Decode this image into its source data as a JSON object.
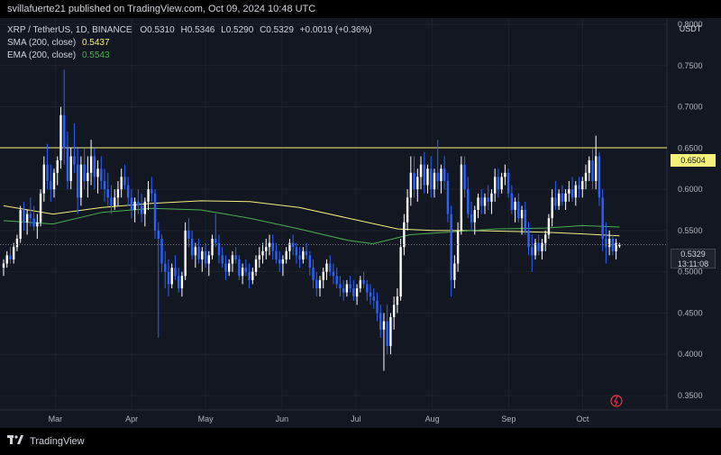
{
  "header": {
    "publisher_text": "svillafuerte21 published on TradingView.com, Oct 09, 2024 10:48 UTC"
  },
  "legend": {
    "symbol_line": "XRP / TetherUS, 1D, BINANCE",
    "open_label": "O",
    "open": "0.5310",
    "high_label": "H",
    "high": "0.5346",
    "low_label": "L",
    "low": "0.5290",
    "close_label": "C",
    "close": "0.5329",
    "change": "+0.0019 (+0.36%)",
    "sma_label": "SMA (200, close)",
    "sma_value": "0.5437",
    "ema_label": "EMA (200, close)",
    "ema_value": "0.5543"
  },
  "toolbar": {
    "currency_button": "USDT"
  },
  "price_tags": {
    "hline_value": "0.6504",
    "last_price": "0.5329",
    "countdown": "13:11:08"
  },
  "footer": {
    "brand": "TradingView"
  },
  "colors": {
    "background": "#131722",
    "candle_up": "#ffffff",
    "candle_down": "#2962ff",
    "sma": "#f5f07a",
    "ema": "#4caf50",
    "hline": "#f5f07a",
    "grid": "#1e222d"
  },
  "chart_data": {
    "type": "candlestick",
    "title": "XRP / TetherUS, 1D, BINANCE",
    "ylim": [
      0.32,
      0.82
    ],
    "y_ticks": [
      "0.8000",
      "0.7500",
      "0.7000",
      "0.6500",
      "0.6000",
      "0.5500",
      "0.5000",
      "0.4500",
      "0.4000",
      "0.3500"
    ],
    "y_tick_values": [
      0.8,
      0.75,
      0.7,
      0.65,
      0.6,
      0.55,
      0.5,
      0.45,
      0.4,
      0.35
    ],
    "x_ticks": [
      "Mar",
      "Apr",
      "May",
      "Jun",
      "Jul",
      "Aug",
      "Sep",
      "Oct"
    ],
    "x_tick_days": [
      21,
      52,
      82,
      113,
      143,
      174,
      205,
      235
    ],
    "start_day": 0,
    "end_day": 270,
    "horizontal_line": 0.6504,
    "ohlc": [
      [
        0.505,
        0.515,
        0.495,
        0.51
      ],
      [
        0.51,
        0.525,
        0.505,
        0.52
      ],
      [
        0.52,
        0.53,
        0.51,
        0.515
      ],
      [
        0.515,
        0.535,
        0.51,
        0.53
      ],
      [
        0.53,
        0.545,
        0.525,
        0.54
      ],
      [
        0.54,
        0.58,
        0.535,
        0.575
      ],
      [
        0.575,
        0.585,
        0.55,
        0.56
      ],
      [
        0.56,
        0.575,
        0.545,
        0.57
      ],
      [
        0.57,
        0.59,
        0.555,
        0.565
      ],
      [
        0.565,
        0.58,
        0.55,
        0.555
      ],
      [
        0.555,
        0.57,
        0.54,
        0.56
      ],
      [
        0.56,
        0.6,
        0.555,
        0.595
      ],
      [
        0.595,
        0.64,
        0.585,
        0.63
      ],
      [
        0.63,
        0.655,
        0.6,
        0.61
      ],
      [
        0.61,
        0.63,
        0.585,
        0.6
      ],
      [
        0.6,
        0.625,
        0.59,
        0.62
      ],
      [
        0.62,
        0.64,
        0.605,
        0.635
      ],
      [
        0.635,
        0.7,
        0.625,
        0.69
      ],
      [
        0.69,
        0.745,
        0.63,
        0.65
      ],
      [
        0.65,
        0.67,
        0.6,
        0.61
      ],
      [
        0.61,
        0.65,
        0.6,
        0.64
      ],
      [
        0.64,
        0.68,
        0.62,
        0.63
      ],
      [
        0.63,
        0.65,
        0.57,
        0.59
      ],
      [
        0.59,
        0.64,
        0.58,
        0.63
      ],
      [
        0.63,
        0.65,
        0.6,
        0.61
      ],
      [
        0.61,
        0.64,
        0.59,
        0.62
      ],
      [
        0.62,
        0.66,
        0.605,
        0.64
      ],
      [
        0.64,
        0.65,
        0.6,
        0.615
      ],
      [
        0.615,
        0.635,
        0.595,
        0.625
      ],
      [
        0.625,
        0.64,
        0.6,
        0.61
      ],
      [
        0.61,
        0.625,
        0.585,
        0.6
      ],
      [
        0.6,
        0.62,
        0.58,
        0.59
      ],
      [
        0.59,
        0.605,
        0.57,
        0.58
      ],
      [
        0.58,
        0.6,
        0.575,
        0.59
      ],
      [
        0.59,
        0.61,
        0.58,
        0.6
      ],
      [
        0.6,
        0.625,
        0.59,
        0.615
      ],
      [
        0.615,
        0.63,
        0.6,
        0.605
      ],
      [
        0.605,
        0.615,
        0.58,
        0.59
      ],
      [
        0.59,
        0.6,
        0.565,
        0.575
      ],
      [
        0.575,
        0.59,
        0.56,
        0.585
      ],
      [
        0.585,
        0.6,
        0.57,
        0.58
      ],
      [
        0.58,
        0.595,
        0.56,
        0.57
      ],
      [
        0.57,
        0.59,
        0.555,
        0.585
      ],
      [
        0.585,
        0.61,
        0.575,
        0.6
      ],
      [
        0.6,
        0.615,
        0.585,
        0.595
      ],
      [
        0.595,
        0.6,
        0.54,
        0.55
      ],
      [
        0.55,
        0.56,
        0.42,
        0.54
      ],
      [
        0.54,
        0.545,
        0.5,
        0.51
      ],
      [
        0.51,
        0.525,
        0.48,
        0.5
      ],
      [
        0.5,
        0.515,
        0.47,
        0.485
      ],
      [
        0.485,
        0.51,
        0.48,
        0.505
      ],
      [
        0.505,
        0.52,
        0.49,
        0.495
      ],
      [
        0.495,
        0.505,
        0.475,
        0.48
      ],
      [
        0.48,
        0.5,
        0.47,
        0.495
      ],
      [
        0.495,
        0.56,
        0.49,
        0.55
      ],
      [
        0.55,
        0.565,
        0.53,
        0.54
      ],
      [
        0.54,
        0.55,
        0.515,
        0.52
      ],
      [
        0.52,
        0.535,
        0.505,
        0.53
      ],
      [
        0.53,
        0.54,
        0.51,
        0.515
      ],
      [
        0.515,
        0.53,
        0.5,
        0.525
      ],
      [
        0.525,
        0.535,
        0.505,
        0.51
      ],
      [
        0.51,
        0.525,
        0.495,
        0.52
      ],
      [
        0.52,
        0.545,
        0.515,
        0.54
      ],
      [
        0.54,
        0.57,
        0.53,
        0.535
      ],
      [
        0.535,
        0.545,
        0.51,
        0.52
      ],
      [
        0.52,
        0.53,
        0.505,
        0.51
      ],
      [
        0.51,
        0.52,
        0.49,
        0.5
      ],
      [
        0.5,
        0.515,
        0.495,
        0.51
      ],
      [
        0.51,
        0.525,
        0.5,
        0.52
      ],
      [
        0.52,
        0.53,
        0.51,
        0.515
      ],
      [
        0.515,
        0.52,
        0.49,
        0.495
      ],
      [
        0.495,
        0.51,
        0.485,
        0.505
      ],
      [
        0.505,
        0.515,
        0.495,
        0.5
      ],
      [
        0.5,
        0.51,
        0.48,
        0.49
      ],
      [
        0.49,
        0.505,
        0.485,
        0.5
      ],
      [
        0.5,
        0.52,
        0.495,
        0.515
      ],
      [
        0.515,
        0.53,
        0.505,
        0.52
      ],
      [
        0.52,
        0.535,
        0.51,
        0.525
      ],
      [
        0.525,
        0.54,
        0.515,
        0.53
      ],
      [
        0.53,
        0.545,
        0.52,
        0.535
      ],
      [
        0.535,
        0.545,
        0.515,
        0.525
      ],
      [
        0.525,
        0.535,
        0.51,
        0.515
      ],
      [
        0.515,
        0.525,
        0.5,
        0.51
      ],
      [
        0.51,
        0.52,
        0.495,
        0.515
      ],
      [
        0.515,
        0.53,
        0.51,
        0.525
      ],
      [
        0.525,
        0.54,
        0.515,
        0.535
      ],
      [
        0.535,
        0.545,
        0.52,
        0.53
      ],
      [
        0.53,
        0.535,
        0.51,
        0.52
      ],
      [
        0.52,
        0.53,
        0.505,
        0.515
      ],
      [
        0.515,
        0.53,
        0.51,
        0.525
      ],
      [
        0.525,
        0.535,
        0.515,
        0.52
      ],
      [
        0.52,
        0.525,
        0.495,
        0.505
      ],
      [
        0.505,
        0.515,
        0.48,
        0.49
      ],
      [
        0.49,
        0.5,
        0.47,
        0.48
      ],
      [
        0.48,
        0.495,
        0.47,
        0.49
      ],
      [
        0.49,
        0.505,
        0.48,
        0.5
      ],
      [
        0.5,
        0.515,
        0.49,
        0.51
      ],
      [
        0.51,
        0.52,
        0.495,
        0.5
      ],
      [
        0.5,
        0.51,
        0.485,
        0.495
      ],
      [
        0.495,
        0.505,
        0.48,
        0.485
      ],
      [
        0.485,
        0.495,
        0.47,
        0.48
      ],
      [
        0.48,
        0.49,
        0.465,
        0.475
      ],
      [
        0.475,
        0.49,
        0.47,
        0.485
      ],
      [
        0.485,
        0.495,
        0.475,
        0.48
      ],
      [
        0.48,
        0.49,
        0.465,
        0.47
      ],
      [
        0.47,
        0.485,
        0.46,
        0.48
      ],
      [
        0.48,
        0.495,
        0.475,
        0.49
      ],
      [
        0.49,
        0.5,
        0.48,
        0.485
      ],
      [
        0.485,
        0.49,
        0.465,
        0.475
      ],
      [
        0.475,
        0.485,
        0.46,
        0.47
      ],
      [
        0.47,
        0.48,
        0.455,
        0.465
      ],
      [
        0.465,
        0.475,
        0.44,
        0.45
      ],
      [
        0.45,
        0.46,
        0.42,
        0.43
      ],
      [
        0.43,
        0.45,
        0.38,
        0.44
      ],
      [
        0.44,
        0.46,
        0.4,
        0.41
      ],
      [
        0.41,
        0.45,
        0.4,
        0.445
      ],
      [
        0.445,
        0.47,
        0.43,
        0.46
      ],
      [
        0.46,
        0.48,
        0.45,
        0.47
      ],
      [
        0.47,
        0.54,
        0.465,
        0.53
      ],
      [
        0.53,
        0.57,
        0.52,
        0.56
      ],
      [
        0.56,
        0.6,
        0.55,
        0.59
      ],
      [
        0.59,
        0.64,
        0.58,
        0.62
      ],
      [
        0.62,
        0.64,
        0.59,
        0.6
      ],
      [
        0.6,
        0.625,
        0.585,
        0.615
      ],
      [
        0.615,
        0.64,
        0.6,
        0.63
      ],
      [
        0.63,
        0.645,
        0.595,
        0.605
      ],
      [
        0.605,
        0.63,
        0.595,
        0.625
      ],
      [
        0.625,
        0.64,
        0.59,
        0.6
      ],
      [
        0.6,
        0.625,
        0.59,
        0.62
      ],
      [
        0.62,
        0.66,
        0.6,
        0.61
      ],
      [
        0.61,
        0.63,
        0.595,
        0.625
      ],
      [
        0.625,
        0.64,
        0.6,
        0.61
      ],
      [
        0.61,
        0.62,
        0.56,
        0.57
      ],
      [
        0.57,
        0.58,
        0.47,
        0.49
      ],
      [
        0.49,
        0.52,
        0.48,
        0.51
      ],
      [
        0.51,
        0.56,
        0.5,
        0.55
      ],
      [
        0.55,
        0.64,
        0.545,
        0.63
      ],
      [
        0.63,
        0.64,
        0.59,
        0.6
      ],
      [
        0.6,
        0.615,
        0.565,
        0.57
      ],
      [
        0.57,
        0.585,
        0.55,
        0.56
      ],
      [
        0.56,
        0.58,
        0.545,
        0.575
      ],
      [
        0.575,
        0.595,
        0.565,
        0.59
      ],
      [
        0.59,
        0.6,
        0.57,
        0.58
      ],
      [
        0.58,
        0.595,
        0.57,
        0.59
      ],
      [
        0.59,
        0.605,
        0.575,
        0.585
      ],
      [
        0.585,
        0.6,
        0.57,
        0.595
      ],
      [
        0.595,
        0.625,
        0.585,
        0.615
      ],
      [
        0.615,
        0.625,
        0.59,
        0.6
      ],
      [
        0.6,
        0.62,
        0.595,
        0.615
      ],
      [
        0.615,
        0.63,
        0.605,
        0.62
      ],
      [
        0.62,
        0.625,
        0.59,
        0.595
      ],
      [
        0.595,
        0.605,
        0.57,
        0.575
      ],
      [
        0.575,
        0.59,
        0.56,
        0.585
      ],
      [
        0.585,
        0.595,
        0.56,
        0.565
      ],
      [
        0.565,
        0.58,
        0.545,
        0.575
      ],
      [
        0.575,
        0.585,
        0.545,
        0.55
      ],
      [
        0.55,
        0.56,
        0.52,
        0.53
      ],
      [
        0.53,
        0.545,
        0.5,
        0.52
      ],
      [
        0.52,
        0.54,
        0.515,
        0.535
      ],
      [
        0.535,
        0.545,
        0.52,
        0.525
      ],
      [
        0.525,
        0.54,
        0.515,
        0.535
      ],
      [
        0.535,
        0.55,
        0.525,
        0.545
      ],
      [
        0.545,
        0.57,
        0.54,
        0.565
      ],
      [
        0.565,
        0.6,
        0.555,
        0.59
      ],
      [
        0.59,
        0.61,
        0.575,
        0.58
      ],
      [
        0.58,
        0.6,
        0.575,
        0.595
      ],
      [
        0.595,
        0.605,
        0.58,
        0.585
      ],
      [
        0.585,
        0.6,
        0.575,
        0.595
      ],
      [
        0.595,
        0.61,
        0.585,
        0.6
      ],
      [
        0.6,
        0.615,
        0.585,
        0.59
      ],
      [
        0.59,
        0.61,
        0.58,
        0.605
      ],
      [
        0.605,
        0.615,
        0.59,
        0.6
      ],
      [
        0.6,
        0.615,
        0.59,
        0.61
      ],
      [
        0.61,
        0.63,
        0.6,
        0.62
      ],
      [
        0.62,
        0.64,
        0.61,
        0.635
      ],
      [
        0.635,
        0.65,
        0.6,
        0.61
      ],
      [
        0.61,
        0.665,
        0.6,
        0.64
      ],
      [
        0.64,
        0.645,
        0.58,
        0.59
      ],
      [
        0.59,
        0.6,
        0.525,
        0.54
      ],
      [
        0.54,
        0.56,
        0.51,
        0.53
      ],
      [
        0.53,
        0.55,
        0.52,
        0.54
      ],
      [
        0.54,
        0.545,
        0.52,
        0.525
      ],
      [
        0.525,
        0.54,
        0.515,
        0.535
      ],
      [
        0.531,
        0.535,
        0.529,
        0.533
      ]
    ],
    "sma_points": [
      [
        0,
        0.58
      ],
      [
        20,
        0.57
      ],
      [
        40,
        0.578
      ],
      [
        60,
        0.583
      ],
      [
        80,
        0.586
      ],
      [
        100,
        0.585
      ],
      [
        120,
        0.578
      ],
      [
        140,
        0.565
      ],
      [
        160,
        0.552
      ],
      [
        175,
        0.55
      ],
      [
        190,
        0.55
      ],
      [
        205,
        0.549
      ],
      [
        220,
        0.548
      ],
      [
        235,
        0.546
      ],
      [
        250,
        0.5437
      ]
    ],
    "ema_points": [
      [
        0,
        0.562
      ],
      [
        20,
        0.558
      ],
      [
        40,
        0.572
      ],
      [
        60,
        0.577
      ],
      [
        80,
        0.575
      ],
      [
        100,
        0.565
      ],
      [
        120,
        0.552
      ],
      [
        140,
        0.538
      ],
      [
        150,
        0.534
      ],
      [
        165,
        0.545
      ],
      [
        180,
        0.548
      ],
      [
        200,
        0.552
      ],
      [
        220,
        0.553
      ],
      [
        235,
        0.556
      ],
      [
        250,
        0.5543
      ]
    ]
  }
}
